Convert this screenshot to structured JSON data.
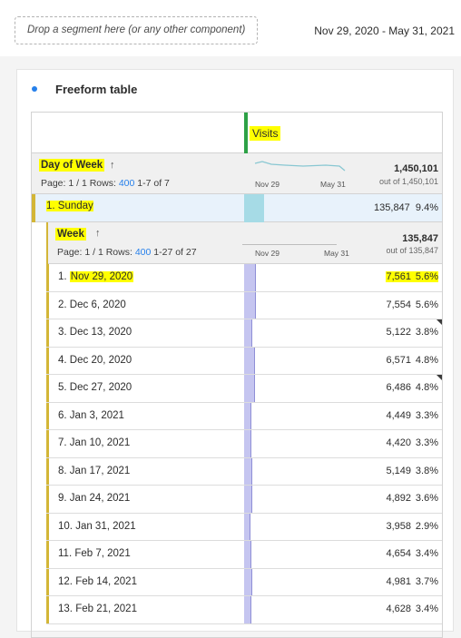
{
  "toolbar": {
    "drop_zone_text": "Drop a segment here (or any other component)",
    "date_range": "Nov 29, 2020 - May 31, 2021"
  },
  "panel": {
    "title": "Freeform table"
  },
  "table": {
    "metric_label": "Visits",
    "dimension": {
      "title": "Day of Week",
      "sort_icon": "↑",
      "page_label": "Page: 1 / 1 Rows:",
      "rows_value": "400",
      "range": "1-7 of 7",
      "spark_start": "Nov 29",
      "spark_end": "May 31",
      "total": "1,450,101",
      "total_sub": "out of 1,450,101"
    },
    "expanded_row": {
      "label": "1. Sunday",
      "value": "135,847",
      "percent": "9.4%"
    },
    "sub_dimension": {
      "title": "Week",
      "sort_icon": "↑",
      "page_label": "Page: 1 / 1 Rows:",
      "rows_value": "400",
      "range": "1-27 of 27",
      "spark_start": "Nov 29",
      "spark_end": "May 31",
      "total": "135,847",
      "total_sub": "out of 135,847"
    },
    "rows": [
      {
        "num": "1.",
        "label": "Nov 29, 2020",
        "value": "7,561",
        "percent": "5.6%",
        "share": 0.056,
        "flag": false,
        "highlight": true
      },
      {
        "num": "2.",
        "label": "Dec 6, 2020",
        "value": "7,554",
        "percent": "5.6%",
        "share": 0.056,
        "flag": false,
        "highlight": false
      },
      {
        "num": "3.",
        "label": "Dec 13, 2020",
        "value": "5,122",
        "percent": "3.8%",
        "share": 0.038,
        "flag": true,
        "highlight": false
      },
      {
        "num": "4.",
        "label": "Dec 20, 2020",
        "value": "6,571",
        "percent": "4.8%",
        "share": 0.048,
        "flag": false,
        "highlight": false
      },
      {
        "num": "5.",
        "label": "Dec 27, 2020",
        "value": "6,486",
        "percent": "4.8%",
        "share": 0.048,
        "flag": true,
        "highlight": false
      },
      {
        "num": "6.",
        "label": "Jan 3, 2021",
        "value": "4,449",
        "percent": "3.3%",
        "share": 0.033,
        "flag": false,
        "highlight": false
      },
      {
        "num": "7.",
        "label": "Jan 10, 2021",
        "value": "4,420",
        "percent": "3.3%",
        "share": 0.033,
        "flag": false,
        "highlight": false
      },
      {
        "num": "8.",
        "label": "Jan 17, 2021",
        "value": "5,149",
        "percent": "3.8%",
        "share": 0.038,
        "flag": false,
        "highlight": false
      },
      {
        "num": "9.",
        "label": "Jan 24, 2021",
        "value": "4,892",
        "percent": "3.6%",
        "share": 0.036,
        "flag": false,
        "highlight": false
      },
      {
        "num": "10.",
        "label": "Jan 31, 2021",
        "value": "3,958",
        "percent": "2.9%",
        "share": 0.029,
        "flag": false,
        "highlight": false
      },
      {
        "num": "11.",
        "label": "Feb 7, 2021",
        "value": "4,654",
        "percent": "3.4%",
        "share": 0.034,
        "flag": false,
        "highlight": false
      },
      {
        "num": "12.",
        "label": "Feb 14, 2021",
        "value": "4,981",
        "percent": "3.7%",
        "share": 0.037,
        "flag": false,
        "highlight": false
      },
      {
        "num": "13.",
        "label": "Feb 21, 2021",
        "value": "4,628",
        "percent": "3.4%",
        "share": 0.034,
        "flag": false,
        "highlight": false
      }
    ]
  },
  "colors": {
    "highlight": "#ffff00",
    "metric_accent": "#2da146",
    "link_blue": "#2680eb",
    "row_marker": "#d3b637",
    "bar_fill": "#c5c5f0",
    "selected_bar": "#a6dbe6"
  }
}
